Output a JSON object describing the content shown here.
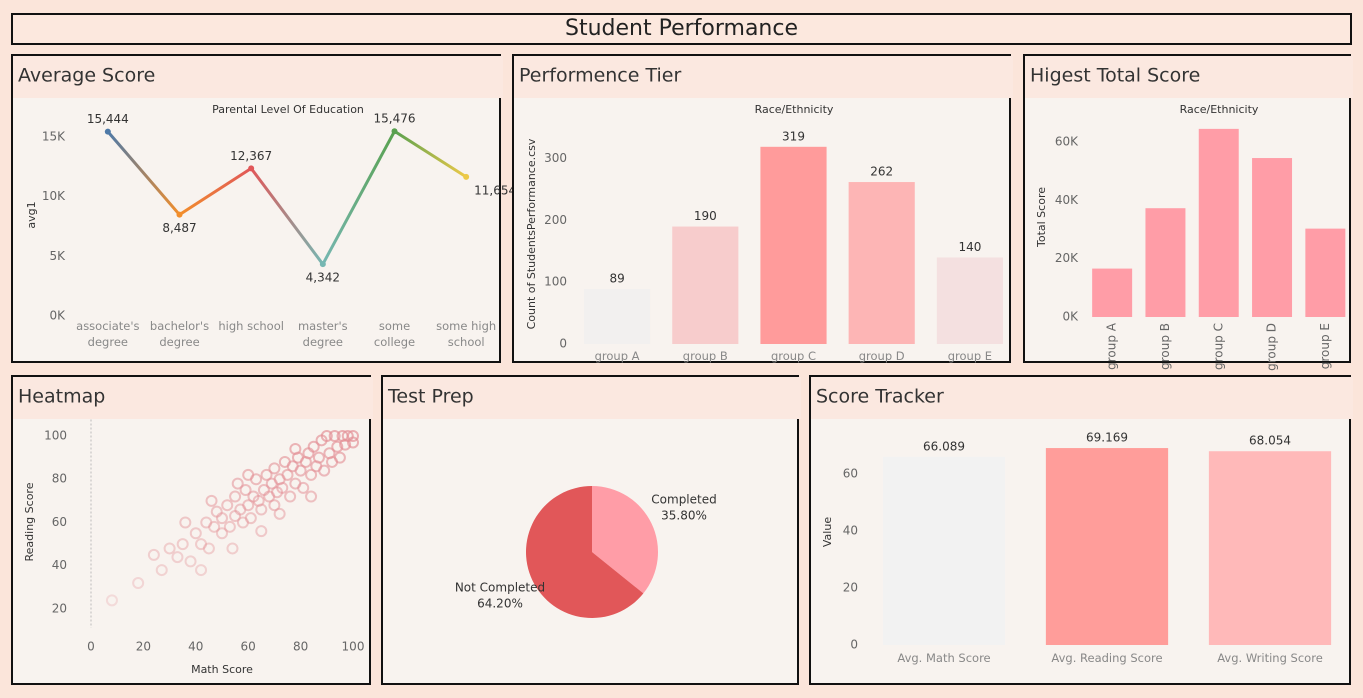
{
  "title": "Student Performance",
  "chart_data": [
    {
      "type": "line",
      "title": "Average Score",
      "xlabel": "Parental Level Of Education",
      "ylabel": "avg1",
      "categories": [
        "associate's degree",
        "bachelor's degree",
        "high school",
        "master's degree",
        "some college",
        "some high school"
      ],
      "values": [
        15444,
        8487,
        12367,
        4342,
        15476,
        11654
      ],
      "value_labels": [
        "15,444",
        "8,487",
        "12,367",
        "4,342",
        "15,476",
        "11,654"
      ],
      "colors": [
        "#4e79a7",
        "#f28e2b",
        "#e15759",
        "#76b7b2",
        "#59a14f",
        "#edc948"
      ],
      "ylim": [
        0,
        16500
      ],
      "yticks": [
        {
          "value": 0,
          "label": "0K"
        },
        {
          "value": 5000,
          "label": "5K"
        },
        {
          "value": 10000,
          "label": "10K"
        },
        {
          "value": 15000,
          "label": "15K"
        }
      ]
    },
    {
      "type": "bar",
      "title": "Performence Tier",
      "xlabel": "Race/Ethnicity",
      "ylabel": "Count of StudentsPerformance.csv",
      "categories": [
        "group A",
        "group B",
        "group C",
        "group D",
        "group E"
      ],
      "values": [
        89,
        190,
        319,
        262,
        140
      ],
      "colors": [
        "#f2f0ef",
        "#f7cccc",
        "#ff9b9b",
        "#fdb5b5",
        "#f4e0e0"
      ],
      "ylim": [
        0,
        330
      ],
      "yticks": [
        0,
        100,
        200,
        300
      ],
      "show_values": true
    },
    {
      "type": "bar",
      "title": "Higest Total Score",
      "xlabel": "Race/Ethnicity",
      "ylabel": "Total Score",
      "categories": [
        "group A",
        "group B",
        "group C",
        "group D",
        "group E"
      ],
      "values": [
        16600,
        37300,
        64500,
        54500,
        30300
      ],
      "colors": [
        "#ff9da7",
        "#ff9da7",
        "#ff9da7",
        "#ff9da7",
        "#ff9da7"
      ],
      "ylim": [
        0,
        66000
      ],
      "yticks": [
        {
          "value": 0,
          "label": "0K"
        },
        {
          "value": 20000,
          "label": "20K"
        },
        {
          "value": 40000,
          "label": "40K"
        },
        {
          "value": 60000,
          "label": "60K"
        }
      ],
      "rotate_categories": true
    },
    {
      "type": "scatter",
      "title": "Heatmap",
      "xlabel": "Math Score",
      "ylabel": "Reading Score",
      "color": "#e39096",
      "x": [
        8,
        18,
        27,
        33,
        35,
        30,
        38,
        40,
        42,
        44,
        45,
        47,
        48,
        50,
        50,
        52,
        53,
        55,
        55,
        57,
        58,
        59,
        60,
        61,
        62,
        63,
        64,
        65,
        66,
        67,
        68,
        69,
        70,
        70,
        71,
        72,
        73,
        74,
        75,
        76,
        77,
        78,
        79,
        80,
        81,
        82,
        83,
        84,
        85,
        86,
        87,
        88,
        89,
        90,
        91,
        92,
        93,
        94,
        95,
        96,
        97,
        98,
        100,
        100,
        36,
        42,
        46,
        54,
        60,
        65,
        72,
        78,
        84,
        24,
        56
      ],
      "values": [
        24,
        32,
        38,
        44,
        50,
        48,
        42,
        55,
        50,
        60,
        48,
        58,
        65,
        55,
        62,
        68,
        58,
        63,
        72,
        66,
        60,
        75,
        68,
        62,
        72,
        80,
        70,
        66,
        75,
        82,
        72,
        78,
        68,
        85,
        74,
        80,
        76,
        88,
        82,
        72,
        86,
        78,
        90,
        84,
        76,
        88,
        92,
        82,
        95,
        86,
        90,
        98,
        84,
        100,
        92,
        88,
        100,
        95,
        90,
        100,
        96,
        100,
        100,
        97,
        60,
        38,
        70,
        48,
        82,
        56,
        64,
        94,
        72,
        45,
        78
      ],
      "xlim": [
        0,
        100
      ],
      "xticks": [
        0,
        20,
        40,
        60,
        80,
        100
      ],
      "ylim": [
        15,
        103
      ],
      "yticks": [
        20,
        40,
        60,
        80,
        100
      ]
    },
    {
      "type": "pie",
      "title": "Test Prep",
      "categories": [
        "Completed",
        "Not Completed"
      ],
      "values": [
        35.8,
        64.2
      ],
      "value_labels": [
        "35.80%",
        "64.20%"
      ],
      "colors": [
        "#ff9da7",
        "#e15759"
      ]
    },
    {
      "type": "bar",
      "title": "Score Tracker",
      "ylabel": "Value",
      "categories": [
        "Avg. Math Score",
        "Avg. Reading Score",
        "Avg. Writing Score"
      ],
      "values": [
        66.089,
        69.169,
        68.054
      ],
      "colors": [
        "#f2f2f2",
        "#ff9d9a",
        "#ffb9b9"
      ],
      "ylim": [
        0,
        72
      ],
      "yticks": [
        0,
        20,
        40,
        60
      ],
      "show_values": true
    }
  ]
}
